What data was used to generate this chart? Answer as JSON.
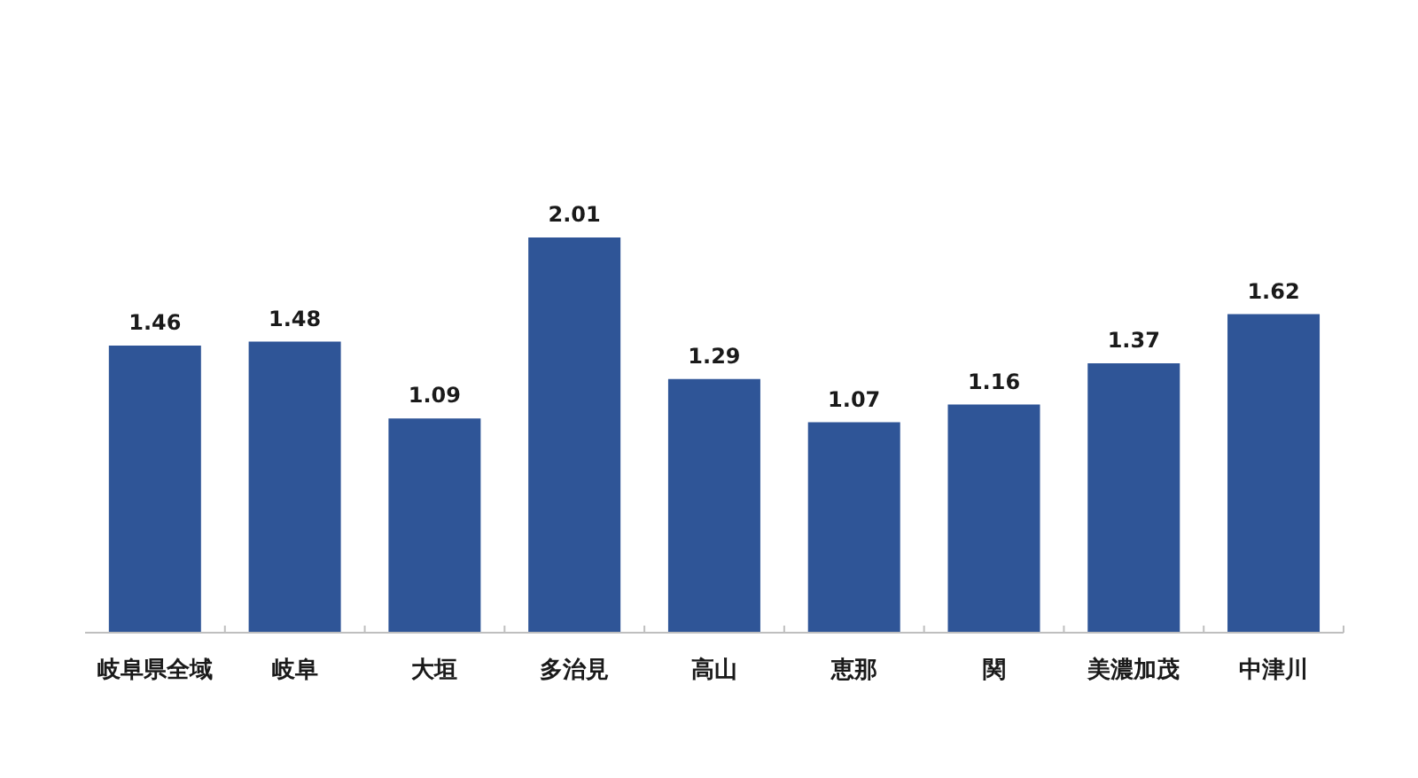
{
  "chart_data": {
    "type": "bar",
    "categories": [
      "岐阜県全域",
      "岐阜",
      "大垣",
      "多治見",
      "高山",
      "恵那",
      "関",
      "美濃加茂",
      "中津川"
    ],
    "values": [
      1.46,
      1.48,
      1.09,
      2.01,
      1.29,
      1.07,
      1.16,
      1.37,
      1.62
    ],
    "color": "#2f5597",
    "data_labels": true,
    "tick_labels": "x"
  }
}
